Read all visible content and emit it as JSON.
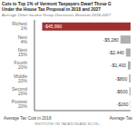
{
  "chart_data": {
    "type": "bar",
    "orientation": "horizontal",
    "title": "Cuts to Top 1% of Vermont Taxpayers Dwarf Those G\nUnder the House Tax Proposal in 2018 and 2027",
    "subtitle": "Average Other Income Group Decreases Between 2018-2027",
    "xlabel": "Average Tax Cuts in 2018",
    "annotations": [
      "Average Tax",
      "INSTITUTE ON TAXATION AND ECON..."
    ],
    "categories": [
      "Richest 1%",
      "Next 4%",
      "Next 15%",
      "Fourth 20%",
      "Middle 20%",
      "Second 20%",
      "Poorest 20%"
    ],
    "values": [
      -45990,
      -5280,
      -2440,
      -1400,
      -800,
      -600,
      -160
    ],
    "value_labels": [
      "-$45,990",
      "-$5,280",
      "-$2,440",
      "-$1,400",
      "-$800",
      "-$600",
      "-$160"
    ],
    "colors": [
      "#a03030",
      "#b0b0b0",
      "#b0b0b0",
      "#b0b0b0",
      "#b0b0b0",
      "#b0b0b0",
      "#b0b0b0"
    ],
    "xlim": [
      -50000,
      0
    ],
    "data_labels": true,
    "tick_labels": "y",
    "grid": false
  }
}
